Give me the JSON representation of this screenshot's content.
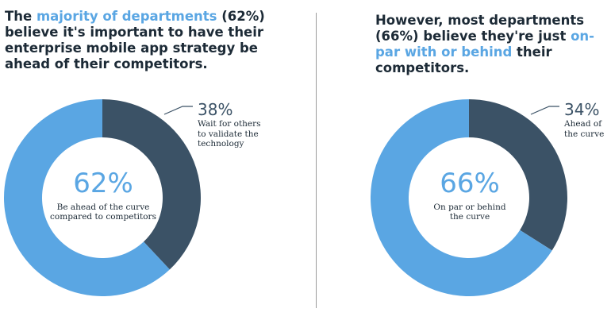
{
  "colors": {
    "major": "#5aa6e3",
    "minor": "#3b5266",
    "text": "#1c2a36"
  },
  "left_panel": {
    "heading": {
      "part1": "The ",
      "highlight": "majority of departments",
      "part2": " (62%) believe it's important to have their enterprise mobile app strategy be ahead of their competitors."
    },
    "center_percent": "62%",
    "center_label_line1": "Be ahead of the curve",
    "center_label_line2": "compared to competitors",
    "callout_percent": "38%",
    "callout_label_line1": "Wait for others",
    "callout_label_line2": "to validate the",
    "callout_label_line3": "technology"
  },
  "right_panel": {
    "heading": {
      "part1": "However, most departments (66%) believe they're just ",
      "highlight": "on-par with or behind",
      "part2": " their competitors."
    },
    "center_percent": "66%",
    "center_label_line1": "On par or behind",
    "center_label_line2": "the curve",
    "callout_percent": "34%",
    "callout_label_line1": "Ahead of",
    "callout_label_line2": "the curve"
  },
  "chart_data": [
    {
      "type": "pie",
      "categories": [
        "Be ahead of the curve compared to competitors",
        "Wait for others to validate the technology"
      ],
      "values": [
        62,
        38
      ],
      "unit": "%"
    },
    {
      "type": "pie",
      "categories": [
        "On par or behind the curve",
        "Ahead of the curve"
      ],
      "values": [
        66,
        34
      ],
      "unit": "%"
    }
  ]
}
